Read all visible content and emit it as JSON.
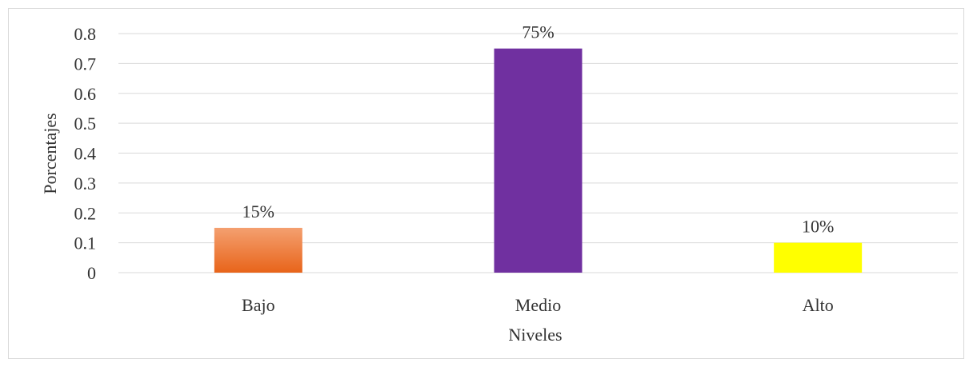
{
  "chart_data": {
    "type": "bar",
    "title": "",
    "xlabel": "Niveles",
    "ylabel": "Porcentajes",
    "categories": [
      "Bajo",
      "Medio",
      "Alto"
    ],
    "values": [
      0.15,
      0.75,
      0.1
    ],
    "data_labels": [
      "15%",
      "75%",
      "10%"
    ],
    "colors": [
      "#ed7d31",
      "#7030a0",
      "#ffff00"
    ],
    "ylim": [
      0,
      0.8
    ],
    "yticks": [
      "0",
      "0.1",
      "0.2",
      "0.3",
      "0.4",
      "0.5",
      "0.6",
      "0.7",
      "0.8"
    ],
    "grid": true,
    "legend": "none"
  }
}
